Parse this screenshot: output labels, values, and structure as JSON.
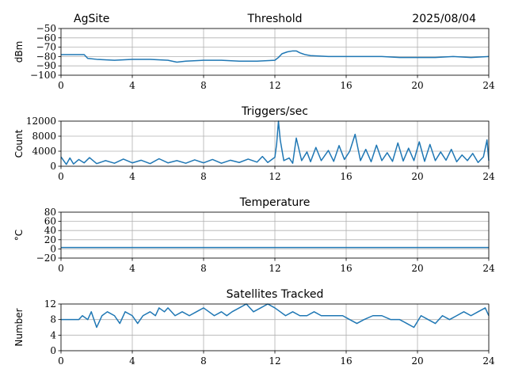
{
  "header": {
    "site": "AgSite",
    "date": "2025/08/04"
  },
  "chart_data": [
    {
      "type": "line",
      "title": "Threshold",
      "ylabel": "dBm",
      "xlabel": "",
      "xlim": [
        0,
        24
      ],
      "ylim": [
        -100,
        -50
      ],
      "xticks": [
        0,
        4,
        8,
        12,
        16,
        20,
        24
      ],
      "yticks": [
        -100,
        -90,
        -80,
        -70,
        -60,
        -50
      ],
      "yticklabels": [
        "−100",
        "−90",
        "−80",
        "−70",
        "−60",
        "−50"
      ],
      "grid": true,
      "series": [
        {
          "color": "#1f77b4",
          "x": [
            0,
            1.3,
            1.5,
            2,
            3,
            4,
            5,
            6,
            6.5,
            7,
            8,
            9,
            10,
            11,
            12,
            12.2,
            12.4,
            12.7,
            13,
            13.2,
            13.4,
            13.7,
            14,
            15,
            16,
            17,
            18,
            19,
            20,
            21,
            22,
            23,
            24
          ],
          "y": [
            -78,
            -78,
            -82,
            -83,
            -84,
            -83,
            -83,
            -84,
            -86,
            -85,
            -84,
            -84,
            -85,
            -85,
            -84,
            -81,
            -77,
            -75,
            -74,
            -74,
            -76,
            -78,
            -79,
            -80,
            -80,
            -80,
            -80,
            -81,
            -81,
            -81,
            -80,
            -81,
            -80
          ]
        }
      ]
    },
    {
      "type": "line",
      "title": "Triggers/sec",
      "ylabel": "Count",
      "xlabel": "",
      "xlim": [
        0,
        24
      ],
      "ylim": [
        0,
        12000
      ],
      "xticks": [
        0,
        4,
        8,
        12,
        16,
        20,
        24
      ],
      "yticks": [
        0,
        4000,
        8000,
        12000
      ],
      "yticklabels": [
        "0",
        "4000",
        "8000",
        "12000"
      ],
      "grid": true,
      "series": [
        {
          "color": "#1f77b4",
          "x": [
            0,
            0.3,
            0.5,
            0.7,
            1,
            1.3,
            1.6,
            2,
            2.5,
            3,
            3.5,
            4,
            4.5,
            5,
            5.5,
            6,
            6.5,
            7,
            7.5,
            8,
            8.5,
            9,
            9.5,
            10,
            10.5,
            11,
            11.3,
            11.6,
            12,
            12.1,
            12.2,
            12.3,
            12.5,
            12.8,
            13,
            13.2,
            13.5,
            13.8,
            14,
            14.3,
            14.6,
            15,
            15.3,
            15.6,
            15.9,
            16.2,
            16.5,
            16.8,
            17.1,
            17.4,
            17.7,
            18,
            18.3,
            18.6,
            18.9,
            19.2,
            19.5,
            19.8,
            20.1,
            20.4,
            20.7,
            21,
            21.3,
            21.6,
            21.9,
            22.2,
            22.5,
            22.8,
            23.1,
            23.4,
            23.7,
            23.9,
            24
          ],
          "y": [
            2500,
            500,
            2200,
            600,
            1800,
            900,
            2300,
            700,
            1500,
            800,
            1900,
            900,
            1600,
            700,
            2000,
            900,
            1500,
            800,
            1700,
            900,
            1800,
            800,
            1600,
            1000,
            1900,
            1100,
            2600,
            1000,
            2400,
            6000,
            12000,
            7000,
            1500,
            2200,
            800,
            7500,
            1500,
            3800,
            1200,
            5000,
            1500,
            4200,
            1300,
            5500,
            1800,
            4000,
            8500,
            1500,
            4500,
            1200,
            5600,
            1500,
            3600,
            1300,
            6200,
            1400,
            4800,
            1500,
            6500,
            1300,
            5800,
            1500,
            3800,
            1600,
            4500,
            1200,
            3000,
            1500,
            3400,
            1000,
            2500,
            7000,
            1500
          ]
        }
      ]
    },
    {
      "type": "line",
      "title": "Temperature",
      "ylabel": "°C",
      "xlabel": "",
      "xlim": [
        0,
        24
      ],
      "ylim": [
        -20,
        80
      ],
      "xticks": [
        0,
        4,
        8,
        12,
        16,
        20,
        24
      ],
      "yticks": [
        -20,
        0,
        20,
        40,
        60,
        80
      ],
      "yticklabels": [
        "−20",
        "0",
        "20",
        "40",
        "60",
        "80"
      ],
      "grid": true,
      "series": [
        {
          "color": "#1f77b4",
          "x": [
            0,
            24
          ],
          "y": [
            3,
            3
          ]
        }
      ]
    },
    {
      "type": "line",
      "title": "Satellites Tracked",
      "ylabel": "Number",
      "xlabel": "",
      "xlim": [
        0,
        24
      ],
      "ylim": [
        0,
        12
      ],
      "xticks": [
        0,
        4,
        8,
        12,
        16,
        20,
        24
      ],
      "yticks": [
        0,
        4,
        8,
        12
      ],
      "yticklabels": [
        "0",
        "4",
        "8",
        "12"
      ],
      "grid": true,
      "series": [
        {
          "color": "#1f77b4",
          "x": [
            0,
            1,
            1.2,
            1.5,
            1.7,
            2,
            2.3,
            2.6,
            3,
            3.3,
            3.6,
            4,
            4.3,
            4.6,
            5,
            5.3,
            5.5,
            5.8,
            6,
            6.4,
            6.8,
            7.2,
            7.6,
            8,
            8.3,
            8.6,
            9,
            9.3,
            9.6,
            10,
            10.4,
            10.8,
            11.2,
            11.6,
            12,
            12.3,
            12.6,
            13,
            13.4,
            13.8,
            14.2,
            14.6,
            15,
            15.4,
            15.8,
            16.2,
            16.6,
            17,
            17.5,
            18,
            18.5,
            19,
            19.4,
            19.8,
            20.2,
            20.6,
            21,
            21.4,
            21.8,
            22.2,
            22.6,
            23,
            23.4,
            23.8,
            24
          ],
          "y": [
            8,
            8,
            9,
            8,
            10,
            6,
            9,
            10,
            9,
            7,
            10,
            9,
            7,
            9,
            10,
            9,
            11,
            10,
            11,
            9,
            10,
            9,
            10,
            11,
            10,
            9,
            10,
            9,
            10,
            11,
            12,
            10,
            11,
            12,
            11,
            10,
            9,
            10,
            9,
            9,
            10,
            9,
            9,
            9,
            9,
            8,
            7,
            8,
            9,
            9,
            8,
            8,
            7,
            6,
            9,
            8,
            7,
            9,
            8,
            9,
            10,
            9,
            10,
            11,
            9
          ]
        }
      ]
    }
  ]
}
